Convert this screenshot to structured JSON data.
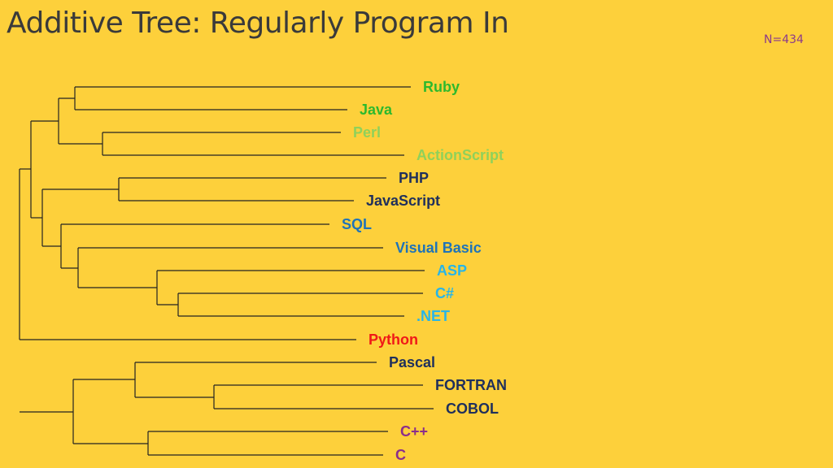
{
  "title": "Additive Tree: Regularly Program In",
  "sample_size": "N=434",
  "leaves": [
    {
      "id": "ruby",
      "label": "Ruby",
      "color": "#2DB92D"
    },
    {
      "id": "java",
      "label": "Java",
      "color": "#2DB92D"
    },
    {
      "id": "perl",
      "label": "Perl",
      "color": "#8FD15A"
    },
    {
      "id": "actionscript",
      "label": "ActionScript",
      "color": "#8FD15A"
    },
    {
      "id": "php",
      "label": "PHP",
      "color": "#1F2F5C"
    },
    {
      "id": "javascript",
      "label": "JavaScript",
      "color": "#1F2F5C"
    },
    {
      "id": "sql",
      "label": "SQL",
      "color": "#1F73B8"
    },
    {
      "id": "visual-basic",
      "label": "Visual Basic",
      "color": "#1F73B8"
    },
    {
      "id": "asp",
      "label": "ASP",
      "color": "#27B5E8"
    },
    {
      "id": "csharp",
      "label": "C#",
      "color": "#27B5E8"
    },
    {
      "id": "dotnet",
      "label": ".NET",
      "color": "#27B5E8"
    },
    {
      "id": "python",
      "label": "Python",
      "color": "#F01818"
    },
    {
      "id": "pascal",
      "label": "Pascal",
      "color": "#1F2F5C"
    },
    {
      "id": "fortran",
      "label": "FORTRAN",
      "color": "#1F2F5C"
    },
    {
      "id": "cobol",
      "label": "COBOL",
      "color": "#1F2F5C"
    },
    {
      "id": "cpp",
      "label": "C++",
      "color": "#8B2D8B"
    },
    {
      "id": "c",
      "label": "C",
      "color": "#8B2D8B"
    }
  ]
}
